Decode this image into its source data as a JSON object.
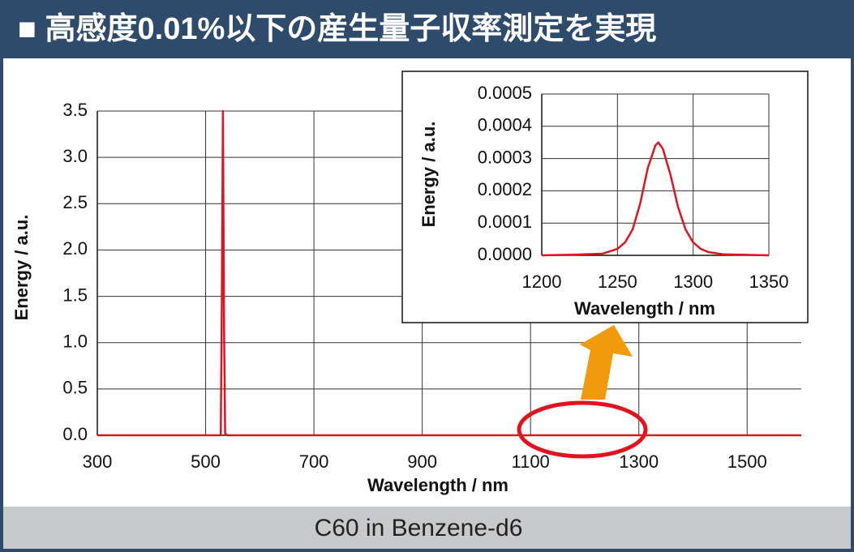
{
  "header": {
    "title": "■ 高感度0.01%以下の産生量子収率測定を実現"
  },
  "footer": {
    "caption": "C60 in Benzene-d6"
  },
  "chart_data": [
    {
      "type": "line",
      "x_label": "Wavelength / nm",
      "y_label": "Energy / a.u.",
      "color": "#e0141e",
      "grid": true,
      "x": [
        300,
        528,
        530,
        532,
        534,
        536,
        540,
        1600
      ],
      "values": [
        0,
        0,
        1.5,
        3.5,
        1.2,
        0.02,
        0,
        0
      ],
      "xlim": [
        300,
        1600
      ],
      "xticks": [
        300,
        500,
        700,
        900,
        1100,
        1300,
        1500
      ],
      "ylim": [
        0,
        3.5
      ],
      "yticks": [
        {
          "value": 0,
          "label": "0.0"
        },
        0.5,
        {
          "value": 1,
          "label": "1.0"
        },
        1.5,
        {
          "value": 2,
          "label": "2.0"
        },
        2.5,
        {
          "value": 3,
          "label": "3.0"
        },
        3.5
      ]
    },
    {
      "type": "line",
      "x_label": "Wavelength / nm",
      "y_label": "Energy / a.u.",
      "color": "#e0141e",
      "grid": true,
      "x": [
        1200,
        1220,
        1240,
        1250,
        1255,
        1260,
        1265,
        1270,
        1275,
        1277,
        1280,
        1285,
        1290,
        1295,
        1300,
        1305,
        1310,
        1320,
        1350
      ],
      "values": [
        0,
        2e-06,
        5e-06,
        2e-05,
        4e-05,
        8e-05,
        0.00016,
        0.00027,
        0.00034,
        0.00035,
        0.00033,
        0.00025,
        0.00015,
        8e-05,
        4e-05,
        2e-05,
        1e-05,
        3e-06,
        0
      ],
      "xlim": [
        1200,
        1350
      ],
      "xticks": [
        1200,
        1250,
        1300,
        1350
      ],
      "ylim": [
        0,
        0.0005
      ],
      "yticks": [
        {
          "value": 0,
          "label": "0.0000"
        },
        {
          "value": 0.0001,
          "label": "0.0001"
        },
        {
          "value": 0.0002,
          "label": "0.0002"
        },
        {
          "value": 0.0003,
          "label": "0.0003"
        },
        {
          "value": 0.0004,
          "label": "0.0004"
        },
        {
          "value": 0.0005,
          "label": "0.0005"
        }
      ]
    }
  ]
}
